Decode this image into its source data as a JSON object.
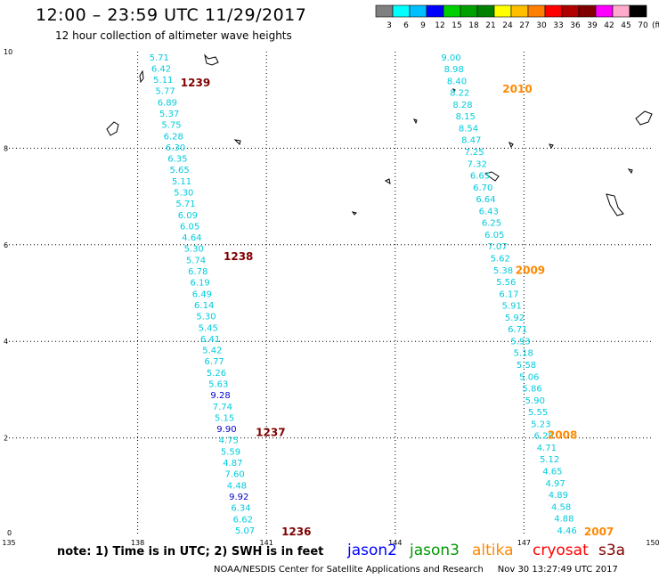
{
  "header": {
    "title": "12:00 – 23:59 UTC 11/29/2017",
    "subtitle": "12 hour collection of altimeter wave heights"
  },
  "colorbar": {
    "colors": [
      "#808080",
      "#00ffff",
      "#00bfff",
      "#0000ff",
      "#00d000",
      "#00a000",
      "#008000",
      "#ffff00",
      "#ffbf00",
      "#ff7f00",
      "#ff0000",
      "#b00000",
      "#800000",
      "#ff00ff",
      "#ffaacc",
      "#000000"
    ],
    "labels": [
      "3",
      "6",
      "9",
      "12",
      "15",
      "18",
      "21",
      "24",
      "27",
      "30",
      "33",
      "36",
      "39",
      "42",
      "45",
      "70"
    ],
    "unit": "(ft)"
  },
  "note": "note:  1) Time is in UTC; 2) SWH is in feet",
  "legend": [
    {
      "name": "jason2",
      "color": "#0000ff"
    },
    {
      "name": "jason3",
      "color": "#009900"
    },
    {
      "name": "altika",
      "color": "#ff8800"
    },
    {
      "name": "cryosat",
      "color": "#ff0000"
    },
    {
      "name": "s3a",
      "color": "#800000"
    }
  ],
  "footer": "NOAA/NESDIS Center for Satellite Applications and Research     Nov 30 13:27:49 UTC 2017",
  "chart_data": {
    "type": "scatter",
    "xlim": [
      135,
      150
    ],
    "ylim": [
      0,
      10
    ],
    "x_ticks": [
      "135",
      "138",
      "141",
      "144",
      "147",
      "150"
    ],
    "y_ticks": [
      "0",
      "2",
      "4",
      "6",
      "8",
      "10"
    ],
    "grid": true,
    "series": [
      {
        "name": "s3a",
        "color": "#00ccdd",
        "x_start": 138.5,
        "y_start": 9.82,
        "x_end": 140.5,
        "y_end": 0.02,
        "values": [
          "5.71",
          "6.42",
          "5.11",
          "5.77",
          "6.89",
          "5.37",
          "5.75",
          "6.28",
          "6.30",
          "6.35",
          "5.65",
          "5.11",
          "5.30",
          "5.71",
          "6.09",
          "6.05",
          "4.64",
          "5.30",
          "5.74",
          "6.78",
          "6.19",
          "6.49",
          "6.14",
          "5.30",
          "5.45",
          "6.41",
          "5.42",
          "6.77",
          "5.26",
          "5.63",
          "9.28",
          "7.74",
          "5.15",
          "9.90",
          "4.75",
          "5.59",
          "4.87",
          "7.60",
          "4.48",
          "9.92",
          "6.34",
          "6.62",
          "5.07"
        ],
        "dark": [
          30,
          33,
          39
        ]
      },
      {
        "name": "s3a",
        "color": "#00ccdd",
        "x_start": 145.3,
        "y_start": 9.82,
        "x_end": 148.0,
        "y_end": 0.02,
        "values": [
          "9.00",
          "8.98",
          "8.40",
          "8.22",
          "8.28",
          "8.15",
          "8.54",
          "8.47",
          "7.25",
          "7.32",
          "6.65",
          "6.70",
          "6.64",
          "6.43",
          "6.25",
          "6.05",
          "7.07",
          "5.62",
          "5.38",
          "5.56",
          "6.17",
          "5.91",
          "5.92",
          "6.71",
          "5.93",
          "5.18",
          "5.58",
          "5.06",
          "5.86",
          "5.90",
          "5.55",
          "5.23",
          "6.28",
          "4.71",
          "5.12",
          "4.65",
          "4.97",
          "4.89",
          "4.58",
          "4.88",
          "4.46"
        ],
        "dark": []
      }
    ],
    "pass_labels": [
      {
        "text": "1239",
        "color": "#800000",
        "lon": 139.0,
        "lat": 9.28
      },
      {
        "text": "1238",
        "color": "#800000",
        "lon": 140.0,
        "lat": 5.68
      },
      {
        "text": "1237",
        "color": "#800000",
        "lon": 140.75,
        "lat": 2.04
      },
      {
        "text": "1236",
        "color": "#800000",
        "lon": 141.35,
        "lat": -0.02
      },
      {
        "text": "2010",
        "color": "#ff8800",
        "lon": 146.5,
        "lat": 9.15
      },
      {
        "text": "2009",
        "color": "#ff8800",
        "lon": 146.8,
        "lat": 5.4
      },
      {
        "text": "2008",
        "color": "#ff8800",
        "lon": 147.55,
        "lat": 1.98
      },
      {
        "text": "2007",
        "color": "#ff8800",
        "lon": 148.4,
        "lat": -0.02
      }
    ]
  }
}
